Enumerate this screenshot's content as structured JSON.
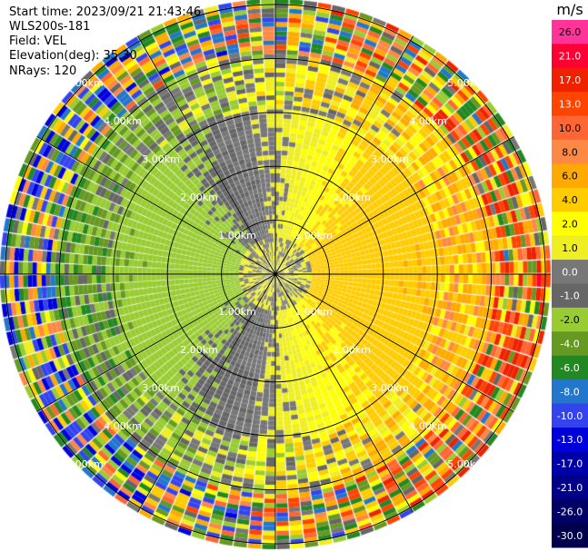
{
  "header": {
    "start_time": "Start time: 2023/09/21 21:43:46",
    "instrument": "WLS200s-181",
    "field": "Field: VEL",
    "elevation": "Elevation(deg): 35.30",
    "nrays": "NRays: 120"
  },
  "chart_data": {
    "type": "ppi",
    "field": "VEL",
    "units": "m/s",
    "elevation_deg": 35.3,
    "nrays": 120,
    "range_rings_km": [
      1.0,
      2.0,
      3.0,
      4.0,
      5.0
    ],
    "range_ring_labels": [
      "1.00km",
      "2.00km",
      "3.00km",
      "4.00km",
      "5.00km"
    ],
    "max_range_km": 5.1,
    "colorbar": {
      "ticks": [
        26.0,
        21.0,
        17.0,
        13.0,
        10.0,
        8.0,
        6.0,
        4.0,
        2.0,
        1.0,
        0.0,
        -1.0,
        -2.0,
        -4.0,
        -6.0,
        -8.0,
        -10.0,
        -13.0,
        -17.0,
        -21.0,
        -26.0,
        -30.0
      ],
      "tick_labels": [
        "26.0",
        "21.0",
        "17.0",
        "13.0",
        "10.0",
        "8.0",
        "6.0",
        "4.0",
        "2.0",
        "1.0",
        "0.0",
        "-1.0",
        "-2.0",
        "-4.0",
        "-6.0",
        "-8.0",
        "-10.0",
        "-13.0",
        "-17.0",
        "-21.0",
        "-26.0",
        "-30.0"
      ],
      "colors": [
        "#ff3399",
        "#ff0033",
        "#ee2200",
        "#ff4400",
        "#ff6633",
        "#ff8844",
        "#ffaa00",
        "#ffcc00",
        "#ffff00",
        "#eeee22",
        "#777777",
        "#666666",
        "#99cc33",
        "#669922",
        "#228822",
        "#2277cc",
        "#3344ee",
        "#0000dd",
        "#0000aa",
        "#000088",
        "#000066",
        "#00004d"
      ]
    },
    "velocity_pattern": {
      "positive_sector_deg": [
        20,
        160
      ],
      "negative_sector_deg": [
        200,
        340
      ],
      "peak_radial_velocity_ms": 4.0
    }
  }
}
